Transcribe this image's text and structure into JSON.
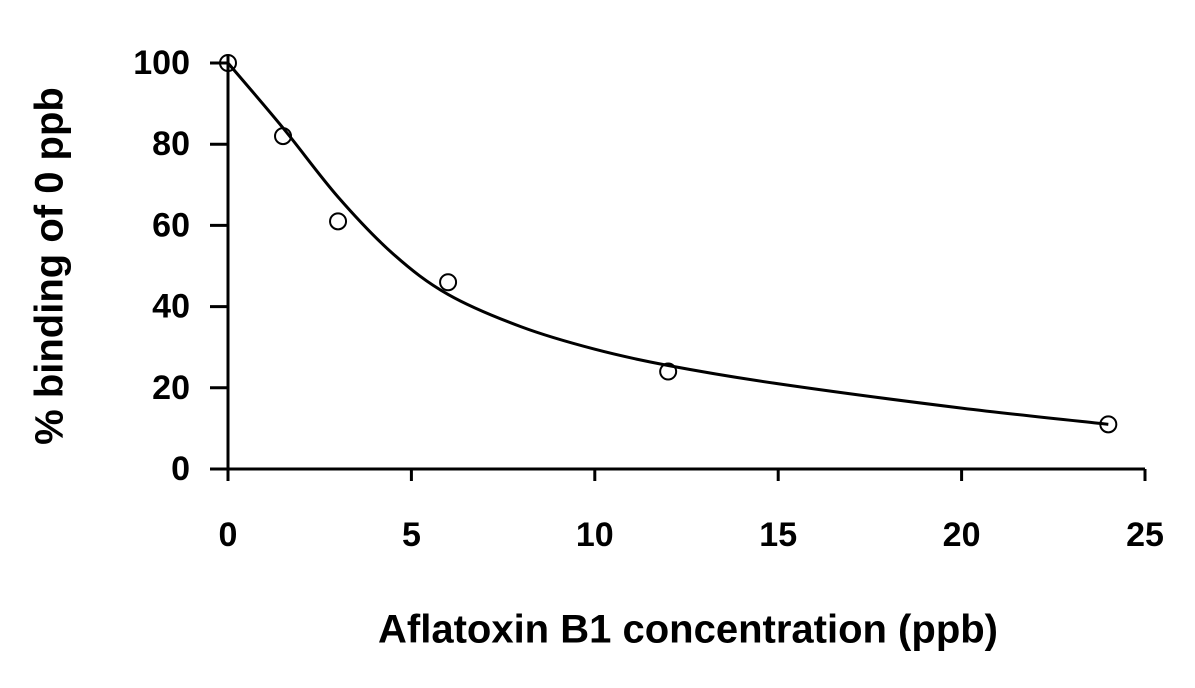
{
  "chart_data": {
    "type": "scatter",
    "xlabel": "Aflatoxin B1 concentration (ppb)",
    "ylabel": "% binding of 0 ppb",
    "xlim": [
      0,
      25
    ],
    "xticks": [
      0,
      5,
      10,
      15,
      20,
      25
    ],
    "ylim": [
      0,
      100
    ],
    "yticks": [
      0,
      20,
      40,
      60,
      80,
      100
    ],
    "series": [
      {
        "type": "scatter",
        "color": "#000000",
        "x": [
          0,
          1.5,
          3,
          6,
          12,
          24
        ],
        "values": [
          100,
          82,
          61,
          46,
          24,
          11
        ]
      },
      {
        "type": "line",
        "color": "#000000",
        "x": [
          0,
          1.5,
          3,
          4.5,
          6,
          8,
          10,
          12,
          15,
          20,
          24
        ],
        "values": [
          100,
          84,
          67,
          53,
          43,
          35,
          29.5,
          25.5,
          21,
          15,
          11
        ]
      }
    ]
  }
}
